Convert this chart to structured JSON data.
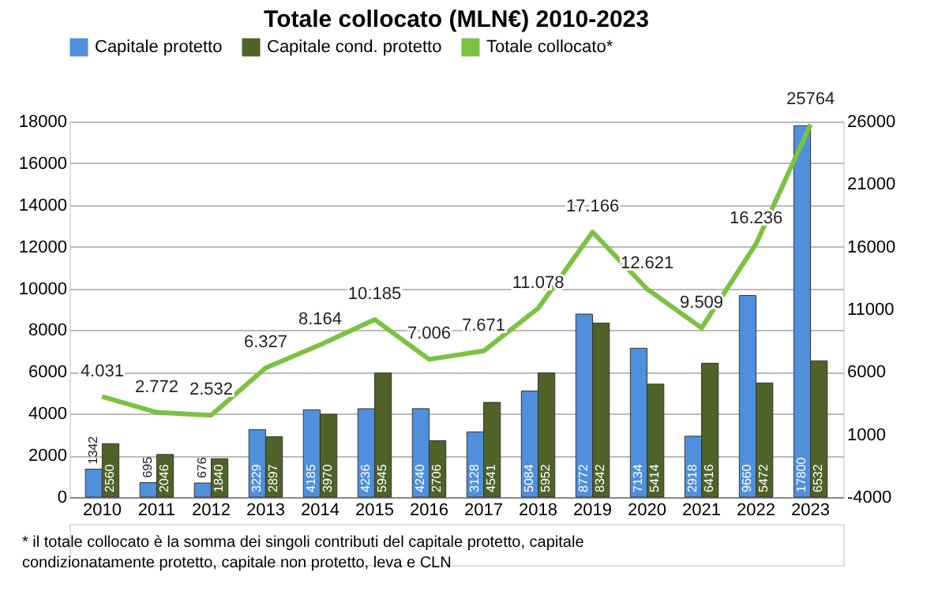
{
  "chart_data": {
    "type": "bar",
    "title": "Totale collocato (MLN€) 2010-2023",
    "categories": [
      "2010",
      "2011",
      "2012",
      "2013",
      "2014",
      "2015",
      "2016",
      "2017",
      "2018",
      "2019",
      "2020",
      "2021",
      "2022",
      "2023"
    ],
    "series": [
      {
        "name": "Capitale protetto",
        "color": "#4f8fdc",
        "values": [
          1342,
          695,
          676,
          3229,
          4185,
          4236,
          4240,
          3128,
          5084,
          8772,
          7134,
          2918,
          9660,
          17800
        ]
      },
      {
        "name": "Capitale cond. protetto",
        "color": "#4f6228",
        "values": [
          2560,
          2046,
          1840,
          2897,
          3970,
          5945,
          2706,
          4541,
          5952,
          8342,
          5414,
          6416,
          5472,
          6532
        ]
      },
      {
        "name": "Totale collocato*",
        "type": "line",
        "axis": "y2",
        "color": "#7cc242",
        "values": [
          4031,
          2772,
          2532,
          6327,
          8164,
          10185,
          7006,
          7671,
          11078,
          17166,
          12621,
          9509,
          16236,
          25764
        ],
        "value_labels": [
          "4.031",
          "2.772",
          "2.532",
          "6.327",
          "8.164",
          "10.185",
          "7.006",
          "7.671",
          "11.078",
          "17.166",
          "12.621",
          "9.509",
          "16.236",
          "25764"
        ]
      }
    ],
    "data_labels": true,
    "ylim": [
      0,
      18000
    ],
    "yticks": [
      0,
      2000,
      4000,
      6000,
      8000,
      10000,
      12000,
      14000,
      16000,
      18000
    ],
    "y2lim": [
      -4000,
      26000
    ],
    "y2ticks": [
      -4000,
      1000,
      6000,
      11000,
      16000,
      21000,
      26000
    ],
    "grid": "y",
    "legend": "top",
    "annotations": [
      "* il totale collocato è la somma dei singoli contributi del capitale protetto, capitale condizionatamente protetto, capitale non protetto, leva e CLN"
    ]
  }
}
